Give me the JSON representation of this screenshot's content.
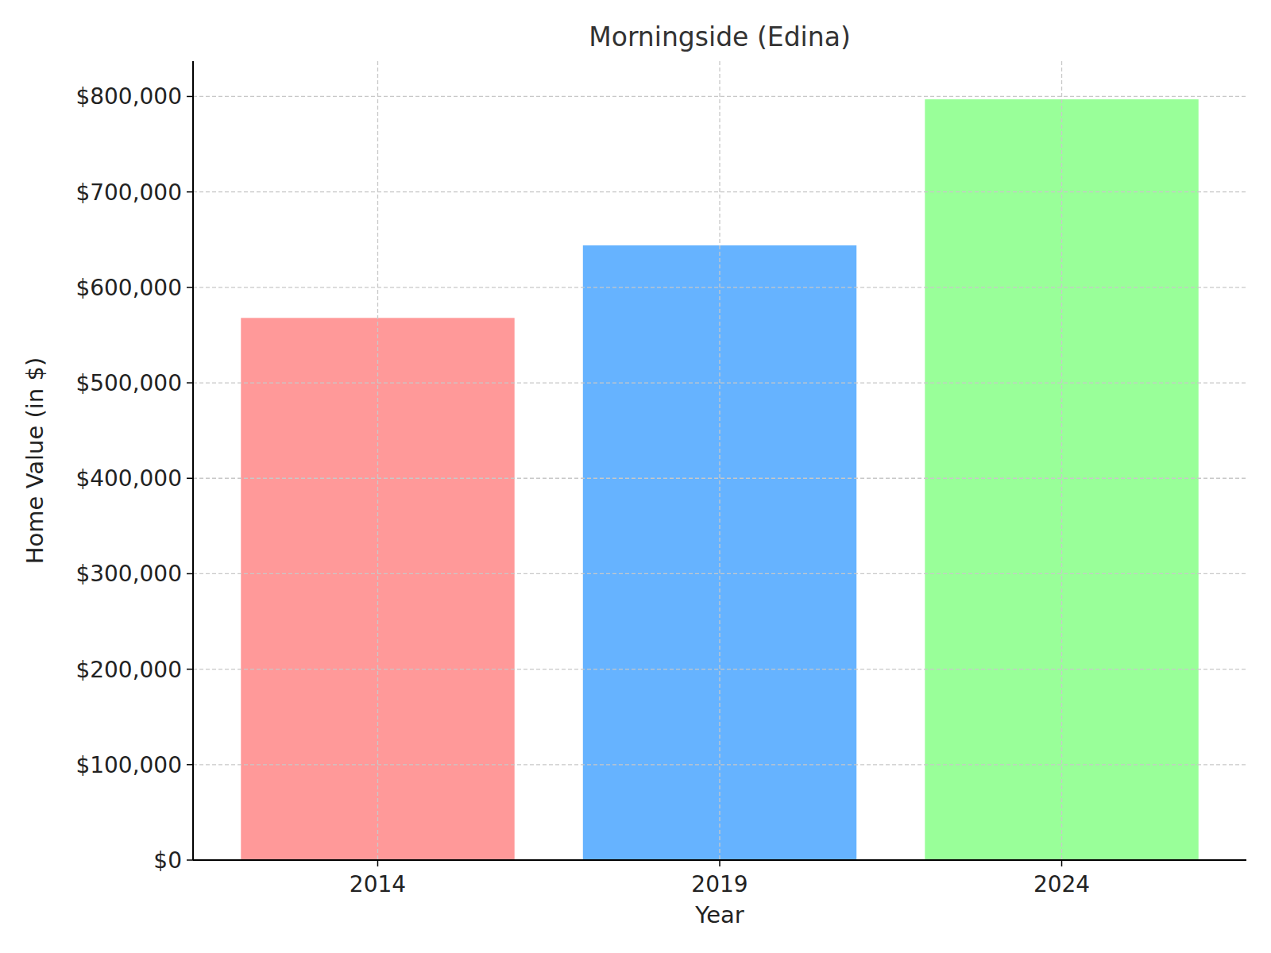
{
  "chart_data": {
    "type": "bar",
    "title": "Morningside (Edina)",
    "x_label": "Year",
    "y_label": "Home Value (in $)",
    "categories": [
      "2014",
      "2019",
      "2024"
    ],
    "values": [
      568000,
      644000,
      797000
    ],
    "colors": [
      "#ff9999",
      "#66b3ff",
      "#99ff99"
    ],
    "ylim": [
      0,
      837000
    ],
    "yticks": [
      {
        "value": 0,
        "label": "$0"
      },
      {
        "value": 100000,
        "label": "$100,000"
      },
      {
        "value": 200000,
        "label": "$200,000"
      },
      {
        "value": 300000,
        "label": "$300,000"
      },
      {
        "value": 400000,
        "label": "$400,000"
      },
      {
        "value": 500000,
        "label": "$500,000"
      },
      {
        "value": 600000,
        "label": "$600,000"
      },
      {
        "value": 700000,
        "label": "$700,000"
      },
      {
        "value": 800000,
        "label": "$800,000"
      }
    ],
    "grid": true
  }
}
